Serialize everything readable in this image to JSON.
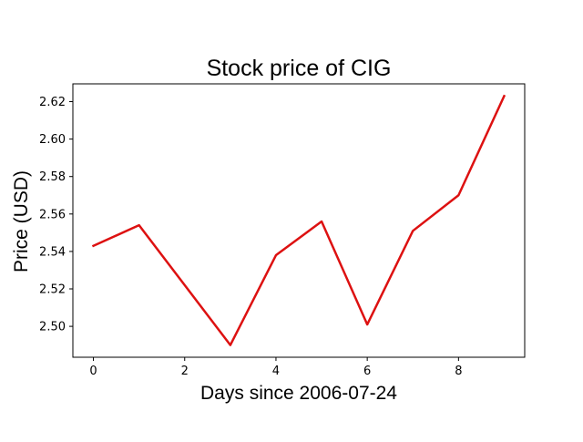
{
  "chart_data": {
    "type": "line",
    "title": "Stock price of CIG",
    "xlabel": "Days since 2006-07-24",
    "ylabel": "Price (USD)",
    "x": [
      0,
      1,
      2,
      3,
      4,
      5,
      6,
      7,
      8,
      9
    ],
    "series": [
      {
        "values": [
          2.543,
          2.554,
          2.522,
          2.49,
          2.538,
          2.556,
          2.501,
          2.551,
          2.57,
          2.623
        ],
        "color": "#dd1111"
      }
    ],
    "xlim": [
      -0.45,
      9.45
    ],
    "ylim": [
      2.4835,
      2.6295
    ],
    "xticks": [
      0,
      2,
      4,
      6,
      8
    ],
    "xtick_labels": [
      "0",
      "2",
      "4",
      "6",
      "8"
    ],
    "yticks": [
      2.5,
      2.52,
      2.54,
      2.56,
      2.58,
      2.6,
      2.62
    ],
    "ytick_labels": [
      "2.50",
      "2.52",
      "2.54",
      "2.56",
      "2.58",
      "2.60",
      "2.62"
    ],
    "grid": false,
    "legend": false
  }
}
